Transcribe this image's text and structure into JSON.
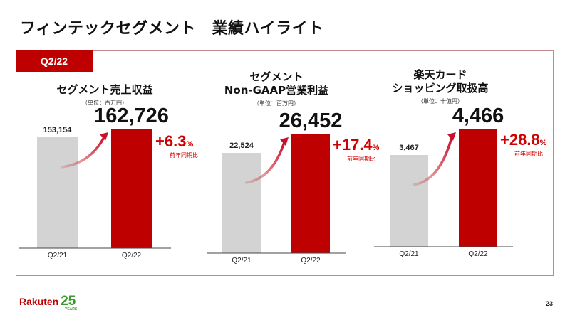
{
  "page": {
    "title": "フィンテックセグメント　業績ハイライト",
    "period_tab": "Q2/22",
    "page_number": "23",
    "logo": {
      "brand": "Rakuten",
      "anniversary": "25",
      "anniversary_sub": "YEARS"
    }
  },
  "colors": {
    "accent": "#bf0000",
    "prior_bar": "#d3d3d3",
    "current_bar": "#bf0000",
    "growth_text": "#d10000",
    "frame": "#c08a8f"
  },
  "chart_data": [
    {
      "type": "bar",
      "title": "セグメント売上収益",
      "unit": "（単位：百万円）",
      "categories": [
        "Q2/21",
        "Q2/22"
      ],
      "values": [
        153154,
        162726
      ],
      "value_labels": [
        "153,154",
        "162,726"
      ],
      "growth": {
        "value": "+6.3",
        "suffix": "%",
        "label": "前年同期比"
      }
    },
    {
      "type": "bar",
      "title_lines": [
        "セグメント",
        "Non-GAAP営業利益"
      ],
      "unit": "（単位：百万円）",
      "categories": [
        "Q2/21",
        "Q2/22"
      ],
      "values": [
        22524,
        26452
      ],
      "value_labels": [
        "22,524",
        "26,452"
      ],
      "growth": {
        "value": "+17.4",
        "suffix": "%",
        "label": "前年同期比"
      }
    },
    {
      "type": "bar",
      "title_lines": [
        "楽天カード",
        "ショッピング取扱高"
      ],
      "unit": "（単位：十億円）",
      "categories": [
        "Q2/21",
        "Q2/22"
      ],
      "values": [
        3467,
        4466
      ],
      "value_labels": [
        "3,467",
        "4,466"
      ],
      "growth": {
        "value": "+28.8",
        "suffix": "%",
        "label": "前年同期比"
      }
    }
  ]
}
